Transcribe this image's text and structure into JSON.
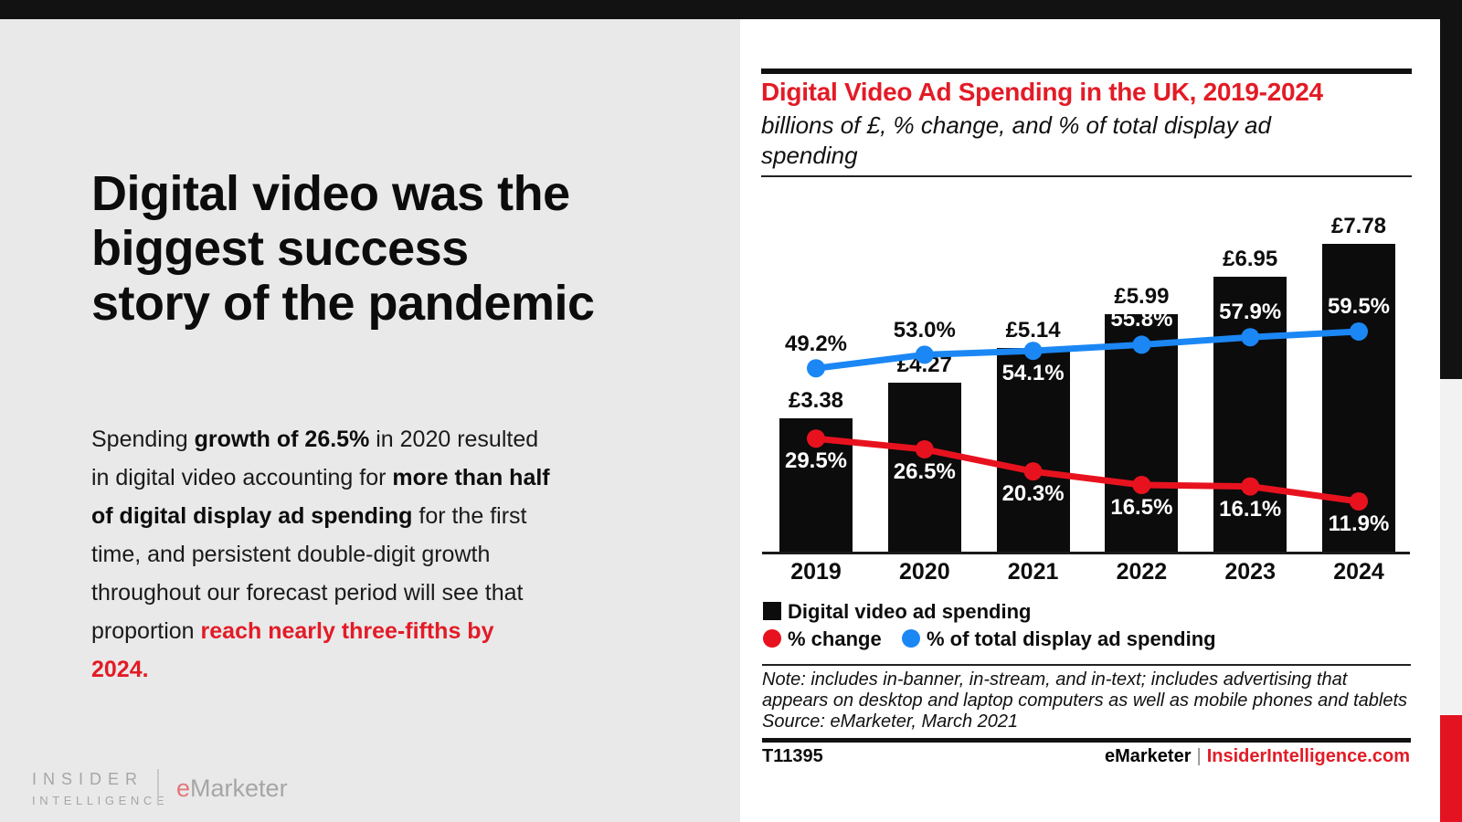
{
  "colors": {
    "accent_red": "#e31b26",
    "line_red": "#e8121f",
    "line_blue": "#1b87f4",
    "bar_black": "#0c0c0c",
    "left_bg": "#e9e9e9",
    "top_bar": "#121212",
    "strip_gray": "#f2f2f2",
    "strip_red": "#e41321",
    "logo_gray": "#a6a6a6",
    "logo_e_red": "#e2767c"
  },
  "left": {
    "headline_lines": [
      "Digital video was the",
      "biggest success",
      "story of the pandemic"
    ],
    "paragraph": {
      "lines": [
        [
          {
            "t": "Spending "
          },
          {
            "t": "growth of 26.5%",
            "b": 1
          },
          {
            "t": " in 2020 resulted"
          }
        ],
        [
          {
            "t": "in digital video accounting for "
          },
          {
            "t": "more than half",
            "b": 1
          }
        ],
        [
          {
            "t": "of digital display ad spending",
            "b": 1
          },
          {
            "t": " for the first"
          }
        ],
        [
          {
            "t": "time, and persistent double-digit growth"
          }
        ],
        [
          {
            "t": "throughout our forecast period will see that"
          }
        ],
        [
          {
            "t": "proportion "
          },
          {
            "t": "reach nearly three-fifths by",
            "b": 1,
            "r": 1
          }
        ],
        [
          {
            "t": "2024.",
            "b": 1,
            "r": 1
          }
        ]
      ]
    },
    "logo": {
      "line1": "INSIDER",
      "line2": "INTELLIGENCE",
      "brand_e": "e",
      "brand_rest": "Marketer"
    }
  },
  "panel": {
    "title": "Digital Video Ad Spending in the UK, 2019-2024",
    "subtitle_lines": [
      "billions of £, % change, and % of total display ad",
      "spending"
    ],
    "note_lines": [
      "Note: includes in-banner, in-stream, and in-text; includes advertising that",
      "appears on desktop and laptop computers as well as mobile phones and tablets",
      "Source: eMarketer, March 2021"
    ],
    "footer": {
      "id": "T11395",
      "brand": "eMarketer",
      "divider": "|",
      "site": "InsiderIntelligence.com"
    }
  },
  "chart_data": {
    "type": "bar",
    "title": "Digital Video Ad Spending in the UK, 2019-2024",
    "subtitle": "billions of £, % change, and % of total display ad spending",
    "categories": [
      "2019",
      "2020",
      "2021",
      "2022",
      "2023",
      "2024"
    ],
    "grid": false,
    "legend_position": "bottom-left",
    "bar_series": {
      "name": "Digital video ad spending",
      "unit": "billions of £",
      "values": [
        3.38,
        4.27,
        5.14,
        5.99,
        6.95,
        7.78
      ],
      "labels": [
        "£3.38",
        "£4.27",
        "£5.14",
        "£5.99",
        "£6.95",
        "£7.78"
      ],
      "color": "#0c0c0c"
    },
    "line_series": [
      {
        "name": "% change",
        "values": [
          29.5,
          26.5,
          20.3,
          16.5,
          16.1,
          11.9
        ],
        "labels": [
          "29.5%",
          "26.5%",
          "20.3%",
          "16.5%",
          "16.1%",
          "11.9%"
        ],
        "color": "#e8121f",
        "label_placement": [
          "below-in",
          "below-in",
          "below-in",
          "below-in",
          "below-in",
          "below-in"
        ]
      },
      {
        "name": "% of total display ad spending",
        "values": [
          49.2,
          53.0,
          54.1,
          55.8,
          57.9,
          59.5
        ],
        "labels": [
          "49.2%",
          "53.0%",
          "54.1%",
          "55.8%",
          "57.9%",
          "59.5%"
        ],
        "color": "#1b87f4",
        "label_placement": [
          "above-out",
          "above-out",
          "below-in",
          "above-in",
          "above-in",
          "above-in"
        ]
      }
    ],
    "bar_axis_range": [
      0,
      8
    ],
    "pct_axis_range": [
      0,
      65
    ]
  }
}
